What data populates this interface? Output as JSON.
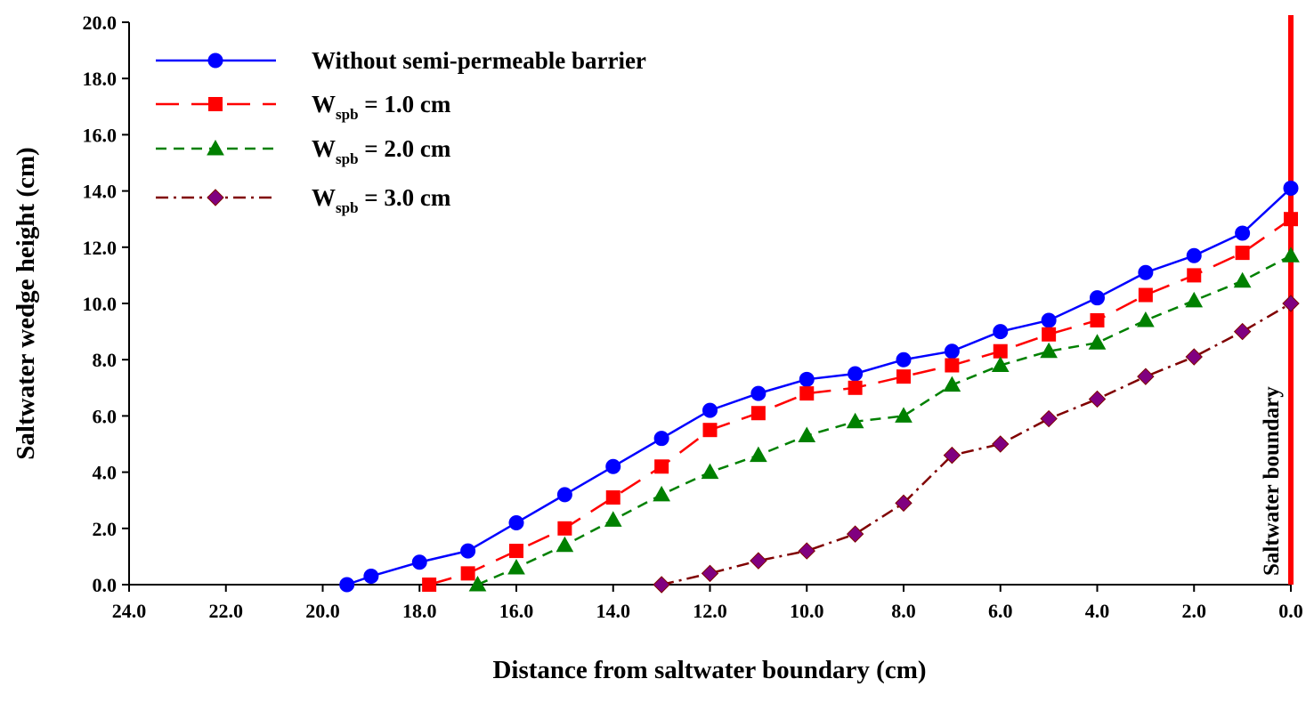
{
  "chart_data": {
    "type": "line",
    "xlabel": "Distance from saltwater boundary (cm)",
    "ylabel": "Saltwater wedge height (cm)",
    "annotation": "Saltwater boundary",
    "annotation_color": "#ff0000",
    "xlim": [
      24,
      0
    ],
    "xticks": [
      {
        "value": 24,
        "label": "24.0"
      },
      {
        "value": 22,
        "label": "22.0"
      },
      {
        "value": 20,
        "label": "20.0"
      },
      {
        "value": 18,
        "label": "18.0"
      },
      {
        "value": 16,
        "label": "16.0"
      },
      {
        "value": 14,
        "label": "14.0"
      },
      {
        "value": 12,
        "label": "12.0"
      },
      {
        "value": 10,
        "label": "10.0"
      },
      {
        "value": 8,
        "label": "8.0"
      },
      {
        "value": 6,
        "label": "6.0"
      },
      {
        "value": 4,
        "label": "4.0"
      },
      {
        "value": 2,
        "label": "2.0"
      },
      {
        "value": 0,
        "label": "0.0"
      }
    ],
    "ylim": [
      0,
      20
    ],
    "yticks": [
      {
        "value": 0,
        "label": "0.0"
      },
      {
        "value": 2,
        "label": "2.0"
      },
      {
        "value": 4,
        "label": "4.0"
      },
      {
        "value": 6,
        "label": "6.0"
      },
      {
        "value": 8,
        "label": "8.0"
      },
      {
        "value": 10,
        "label": "10.0"
      },
      {
        "value": 12,
        "label": "12.0"
      },
      {
        "value": 14,
        "label": "14.0"
      },
      {
        "value": 16,
        "label": "16.0"
      },
      {
        "value": 18,
        "label": "18.0"
      },
      {
        "value": 20,
        "label": "20.0"
      }
    ],
    "legend": "upper left",
    "series": [
      {
        "name": "Without semi-permeable barrier",
        "color": "#0000ff",
        "marker_color": "#0000ff",
        "marker": "circle",
        "dash": "solid",
        "x": [
          19.5,
          19,
          18,
          17,
          16,
          15,
          14,
          13,
          12,
          11,
          10,
          9,
          8,
          7,
          6,
          5,
          4,
          3,
          2,
          1,
          0
        ],
        "values": [
          0,
          0.3,
          0.8,
          1.2,
          2.2,
          3.2,
          4.2,
          5.2,
          6.2,
          6.8,
          7.3,
          7.5,
          8.0,
          8.3,
          9.0,
          9.4,
          10.2,
          11.1,
          11.7,
          12.5,
          14.1
        ]
      },
      {
        "name": "Wspb = 1.0 cm",
        "color": "#ff0000",
        "marker_color": "#ff0000",
        "marker": "square",
        "dash": "dashed",
        "x": [
          17.8,
          17,
          16,
          15,
          14,
          13,
          12,
          11,
          10,
          9,
          8,
          7,
          6,
          5,
          4,
          3,
          2,
          1,
          0
        ],
        "values": [
          0,
          0.4,
          1.2,
          2.0,
          3.1,
          4.2,
          5.5,
          6.1,
          6.8,
          7.0,
          7.4,
          7.8,
          8.3,
          8.9,
          9.4,
          10.3,
          11.0,
          11.8,
          13.0
        ]
      },
      {
        "name": "Wspb = 2.0 cm",
        "color": "#008000",
        "marker_color": "#008000",
        "marker": "triangle",
        "dash": "short-dash",
        "x": [
          16.8,
          16,
          15,
          14,
          13,
          12,
          11,
          10,
          9,
          8,
          7,
          6,
          5,
          4,
          3,
          2,
          1,
          0
        ],
        "values": [
          0,
          0.6,
          1.4,
          2.3,
          3.2,
          4.0,
          4.6,
          5.3,
          5.8,
          6.0,
          7.1,
          7.8,
          8.3,
          8.6,
          9.4,
          10.1,
          10.8,
          11.7
        ]
      },
      {
        "name": "Wspb = 3.0 cm",
        "color": "#800000",
        "marker_color": "#800080",
        "marker": "diamond",
        "dash": "dash-dot",
        "x": [
          13,
          12,
          11,
          10,
          9,
          8,
          7,
          6,
          5,
          4,
          3,
          2,
          1,
          0
        ],
        "values": [
          0,
          0.4,
          0.85,
          1.2,
          1.8,
          2.9,
          4.6,
          5.0,
          5.9,
          6.6,
          7.4,
          8.1,
          9.0,
          10.0
        ]
      }
    ]
  }
}
